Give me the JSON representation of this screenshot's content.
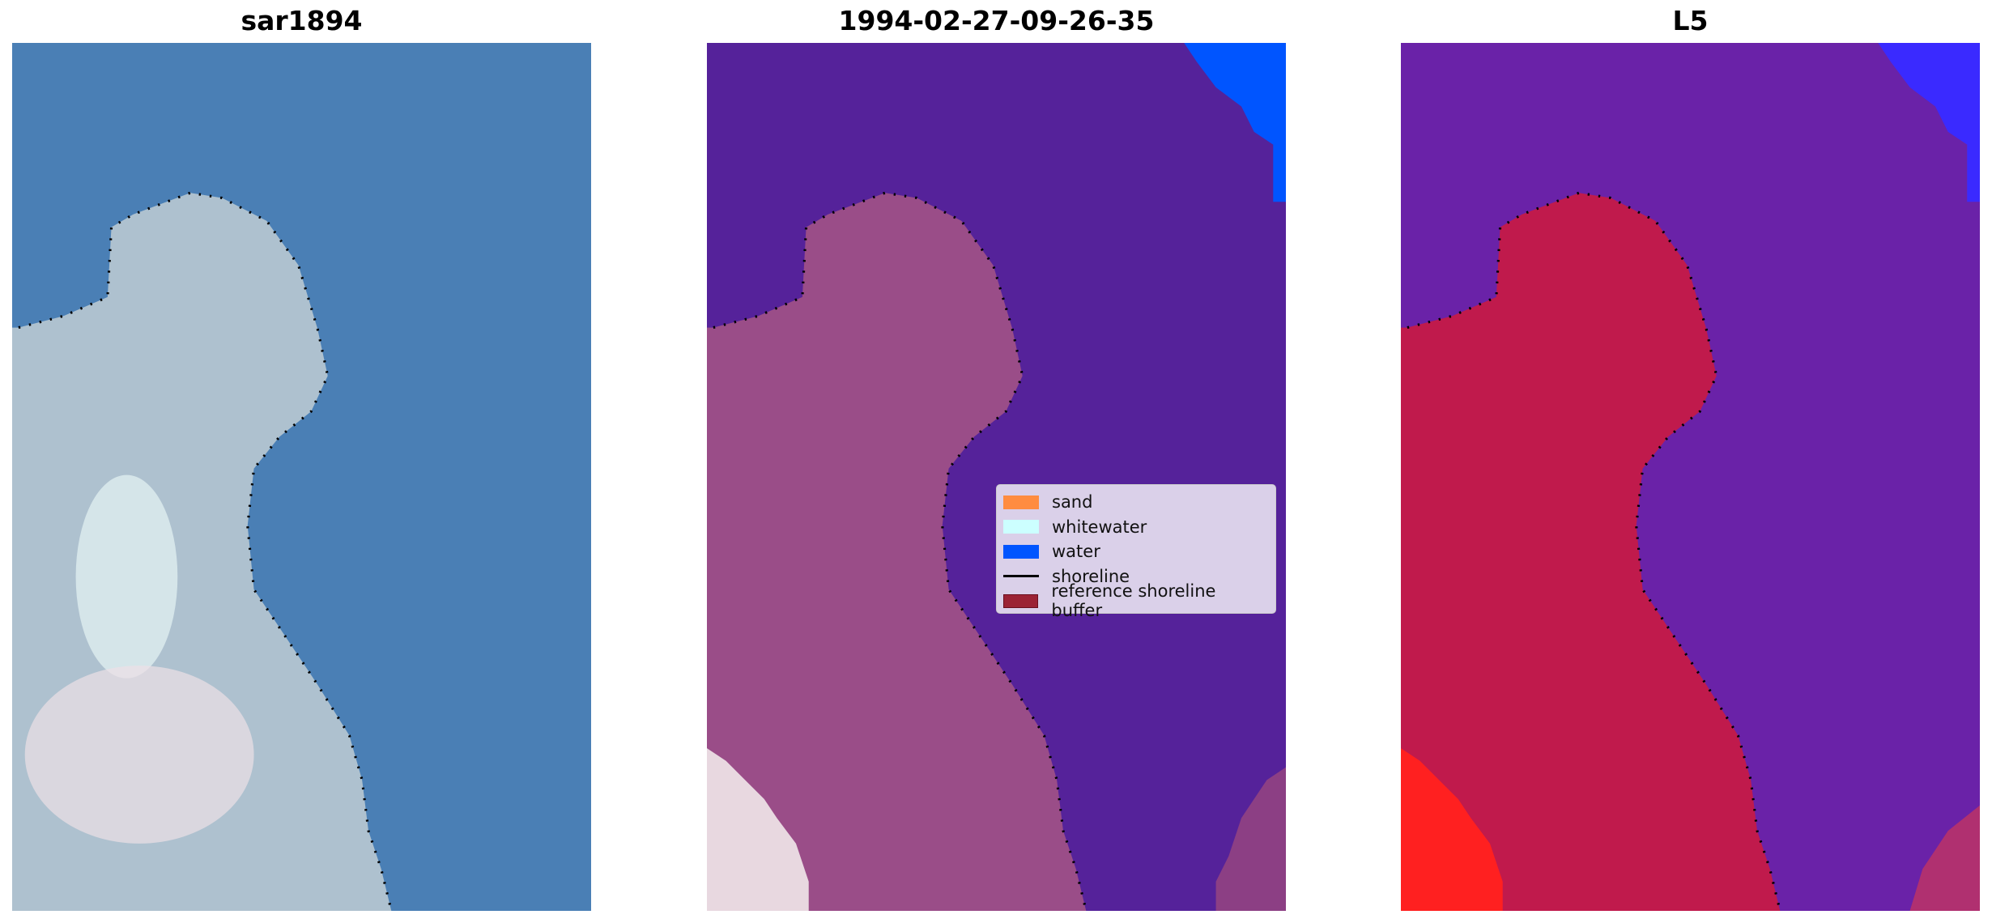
{
  "panels": [
    {
      "title": "sar1894",
      "land_color": "#b7c6cf",
      "water_color": "#4a7fb5"
    },
    {
      "title": "1994-02-27-09-26-35",
      "land_color": "#9a4d88",
      "water_color": "#55229a"
    },
    {
      "title": "L5",
      "land_color": "#c01a4c",
      "water_color": "#6a22a8"
    }
  ],
  "legend": {
    "items": [
      {
        "label": "sand",
        "color": "#ff8c40",
        "kind": "patch"
      },
      {
        "label": "whitewater",
        "color": "#ccffff",
        "kind": "patch"
      },
      {
        "label": "water",
        "color": "#0055ff",
        "kind": "patch"
      },
      {
        "label": "shoreline",
        "color": "#000000",
        "kind": "line"
      },
      {
        "label": "reference shoreline buffer",
        "color": "#9b2335",
        "kind": "patch"
      }
    ]
  }
}
